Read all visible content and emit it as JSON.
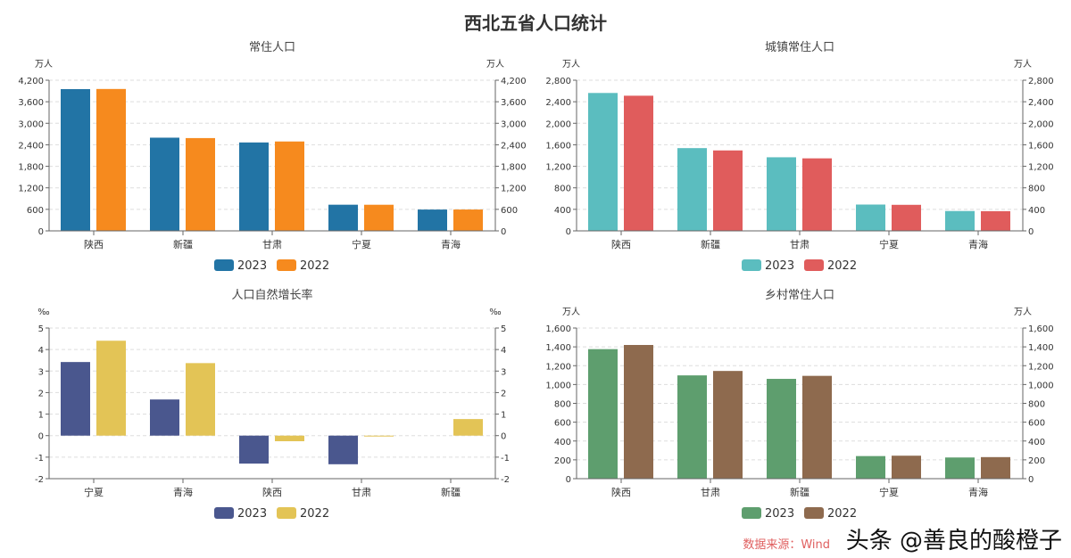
{
  "title": "西北五省人口统计",
  "watermark": "头条 @善良的酸橙子",
  "source": "数据来源：Wind",
  "chart_data": [
    {
      "type": "bar",
      "title": "常住人口",
      "unit": "万人",
      "categories": [
        "陕西",
        "新疆",
        "甘肃",
        "宁夏",
        "青海"
      ],
      "ylim": [
        0,
        4200
      ],
      "ticks": [
        0,
        600,
        1200,
        1800,
        2400,
        3000,
        3600,
        4200
      ],
      "series": [
        {
          "name": "2023",
          "color": "#2274a5",
          "values": [
            3952,
            2598,
            2465,
            729,
            594
          ]
        },
        {
          "name": "2022",
          "color": "#f68a1e",
          "values": [
            3956,
            2587,
            2492,
            728,
            595
          ]
        }
      ]
    },
    {
      "type": "bar",
      "title": "城镇常住人口",
      "unit": "万人",
      "categories": [
        "陕西",
        "新疆",
        "甘肃",
        "宁夏",
        "青海"
      ],
      "ylim": [
        0,
        2800
      ],
      "ticks": [
        0,
        400,
        800,
        1200,
        1600,
        2000,
        2400,
        2800
      ],
      "series": [
        {
          "name": "2023",
          "color": "#5bbdbf",
          "values": [
            2563,
            1538,
            1368,
            489,
            369
          ]
        },
        {
          "name": "2022",
          "color": "#e05c5c",
          "values": [
            2512,
            1495,
            1348,
            484,
            366
          ]
        }
      ]
    },
    {
      "type": "bar",
      "title": "人口自然增长率",
      "unit": "‰",
      "categories": [
        "宁夏",
        "青海",
        "陕西",
        "甘肃",
        "新疆"
      ],
      "ylim": [
        -2,
        5
      ],
      "ticks": [
        -2,
        -1,
        0,
        1,
        2,
        3,
        4,
        5
      ],
      "series": [
        {
          "name": "2023",
          "color": "#4a578e",
          "values": [
            3.42,
            1.68,
            -1.3,
            -1.33,
            null
          ]
        },
        {
          "name": "2022",
          "color": "#e3c456",
          "values": [
            4.41,
            3.37,
            -0.26,
            -0.04,
            0.77
          ]
        }
      ]
    },
    {
      "type": "bar",
      "title": "乡村常住人口",
      "unit": "万人",
      "categories": [
        "陕西",
        "甘肃",
        "新疆",
        "宁夏",
        "青海"
      ],
      "ylim": [
        0,
        1600
      ],
      "ticks": [
        0,
        200,
        400,
        600,
        800,
        1000,
        1200,
        1400,
        1600
      ],
      "series": [
        {
          "name": "2023",
          "color": "#5e9e6e",
          "values": [
            1376,
            1097,
            1060,
            240,
            225
          ]
        },
        {
          "name": "2022",
          "color": "#8e6a4e",
          "values": [
            1420,
            1144,
            1092,
            244,
            229
          ]
        }
      ]
    }
  ]
}
